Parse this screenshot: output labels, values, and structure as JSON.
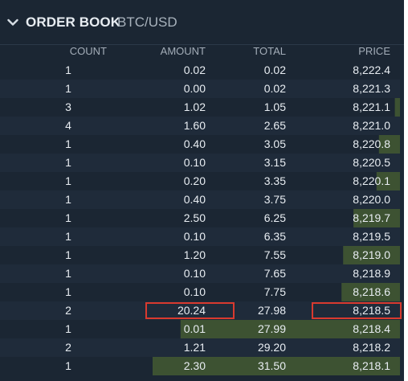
{
  "header": {
    "title": "ORDER BOOK",
    "pair": "BTC/USD"
  },
  "columns": {
    "count": "COUNT",
    "amount": "AMOUNT",
    "total": "TOTAL",
    "price": "PRICE"
  },
  "rows": [
    {
      "count": "1",
      "amount": "0.02",
      "total": "0.02",
      "price": "8,222.4"
    },
    {
      "count": "1",
      "amount": "0.00",
      "total": "0.02",
      "price": "8,221.3"
    },
    {
      "count": "3",
      "amount": "1.02",
      "total": "1.05",
      "price": "8,221.1"
    },
    {
      "count": "4",
      "amount": "1.60",
      "total": "2.65",
      "price": "8,221.0"
    },
    {
      "count": "1",
      "amount": "0.40",
      "total": "3.05",
      "price": "8,220.8"
    },
    {
      "count": "1",
      "amount": "0.10",
      "total": "3.15",
      "price": "8,220.5"
    },
    {
      "count": "1",
      "amount": "0.20",
      "total": "3.35",
      "price": "8,220.1"
    },
    {
      "count": "1",
      "amount": "0.40",
      "total": "3.75",
      "price": "8,220.0"
    },
    {
      "count": "1",
      "amount": "2.50",
      "total": "6.25",
      "price": "8,219.7"
    },
    {
      "count": "1",
      "amount": "0.10",
      "total": "6.35",
      "price": "8,219.5"
    },
    {
      "count": "1",
      "amount": "1.20",
      "total": "7.55",
      "price": "8,219.0"
    },
    {
      "count": "1",
      "amount": "0.10",
      "total": "7.65",
      "price": "8,218.9"
    },
    {
      "count": "1",
      "amount": "0.10",
      "total": "7.75",
      "price": "8,218.6"
    },
    {
      "count": "2",
      "amount": "20.24",
      "total": "27.98",
      "price": "8,218.5"
    },
    {
      "count": "1",
      "amount": "0.01",
      "total": "27.99",
      "price": "8,218.4"
    },
    {
      "count": "2",
      "amount": "1.21",
      "total": "29.20",
      "price": "8,218.2"
    },
    {
      "count": "1",
      "amount": "2.30",
      "total": "31.50",
      "price": "8,218.1"
    }
  ],
  "depth_scale_max": 31.5,
  "highlighted_row": 13,
  "colors": {
    "background": "#1b2633",
    "depth_fill": "#3d5232",
    "highlight_border": "#d93a2f",
    "text": "#e8edf2",
    "header_text": "#a3adb8"
  },
  "icons": {
    "collapse": "chevron-down-icon"
  }
}
